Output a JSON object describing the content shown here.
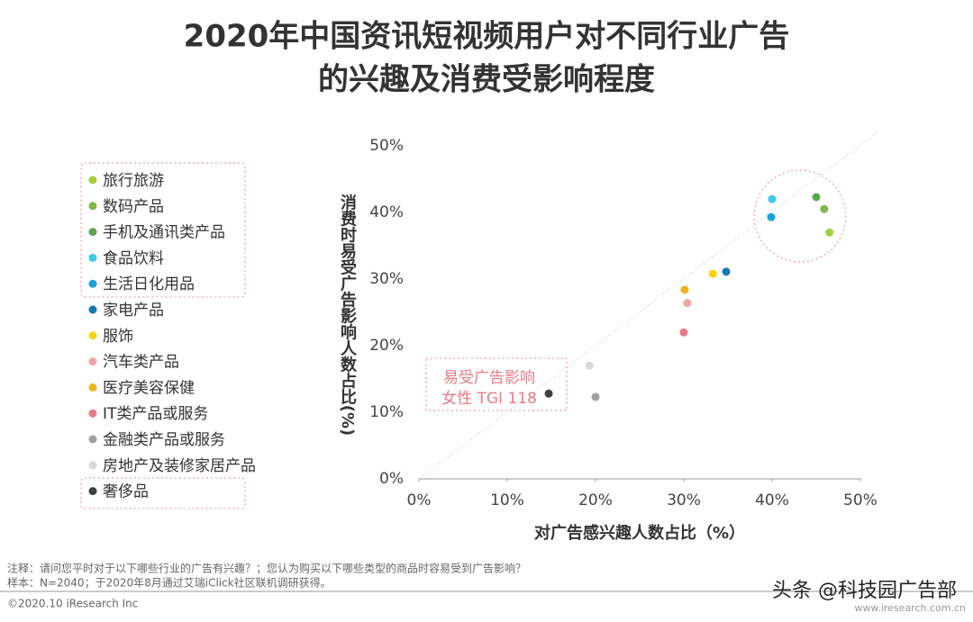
{
  "chart_data": {
    "type": "scatter",
    "title": [
      "2020年中国资讯短视频用户对不同行业广告",
      "的兴趣及消费受影响程度"
    ],
    "x_label": "对广告感兴趣人数占比（%）",
    "y_label": "消费时易受广告影响人数占比(%)",
    "xlim": [
      0,
      50
    ],
    "ylim": [
      0,
      50
    ],
    "xticks": [
      {
        "value": 0,
        "label": "0%"
      },
      {
        "value": 10,
        "label": "10%"
      },
      {
        "value": 20,
        "label": "20%"
      },
      {
        "value": 30,
        "label": "30%"
      },
      {
        "value": 40,
        "label": "40%"
      },
      {
        "value": 50,
        "label": "50%"
      }
    ],
    "yticks": [
      {
        "value": 0,
        "label": "0%"
      },
      {
        "value": 10,
        "label": "10%"
      },
      {
        "value": 20,
        "label": "20%"
      },
      {
        "value": 30,
        "label": "30%"
      },
      {
        "value": 40,
        "label": "40%"
      },
      {
        "value": 50,
        "label": "50%"
      }
    ],
    "series": [
      {
        "name": "旅行旅游",
        "color": "#a8cc3c",
        "x": [
          46.5
        ],
        "values": [
          37.0
        ]
      },
      {
        "name": "数码产品",
        "color": "#7cb84a",
        "x": [
          45.9
        ],
        "values": [
          40.5
        ]
      },
      {
        "name": "手机及通讯类产品",
        "color": "#5aa84e",
        "x": [
          45.0
        ],
        "values": [
          42.3
        ]
      },
      {
        "name": "食品饮料",
        "color": "#3ec8ea",
        "x": [
          40.0
        ],
        "values": [
          42.0
        ]
      },
      {
        "name": "生活日化用品",
        "color": "#1aa4dc",
        "x": [
          39.9
        ],
        "values": [
          39.3
        ]
      },
      {
        "name": "家电产品",
        "color": "#1478b6",
        "x": [
          34.8
        ],
        "values": [
          31.1
        ]
      },
      {
        "name": "服饰",
        "color": "#f5d412",
        "x": [
          33.3
        ],
        "values": [
          30.8
        ]
      },
      {
        "name": "汽车类产品",
        "color": "#f0a4a4",
        "x": [
          30.4
        ],
        "values": [
          26.4
        ]
      },
      {
        "name": "医疗美容保健",
        "color": "#f0b41c",
        "x": [
          30.1
        ],
        "values": [
          28.4
        ]
      },
      {
        "name": "IT类产品或服务",
        "color": "#e87a86",
        "x": [
          30.0
        ],
        "values": [
          22.0
        ]
      },
      {
        "name": "金融类产品或服务",
        "color": "#a0a0a0",
        "x": [
          20.0
        ],
        "values": [
          12.3
        ]
      },
      {
        "name": "房地产及装修家居产品",
        "color": "#d8d8d8",
        "x": [
          19.3
        ],
        "values": [
          17.0
        ]
      },
      {
        "name": "奢侈品",
        "color": "#404040",
        "x": [
          14.7
        ],
        "values": [
          12.8
        ]
      }
    ],
    "annotation": [
      "易受广告影响",
      "女性 TGI 118"
    ],
    "notes": [
      "注释：请问您平时对于以下哪些行业的广告有兴趣？；您认为购买以下哪些类型的商品时容易受到广告影响？",
      "样本：N=2040；于2020年8月通过艾瑞iClick社区联机调研获得。"
    ],
    "copyright": "©2020.10 iResearch Inc",
    "website": "www.iresearch.com.cn",
    "watermark": "头条 @科技园广告部"
  }
}
